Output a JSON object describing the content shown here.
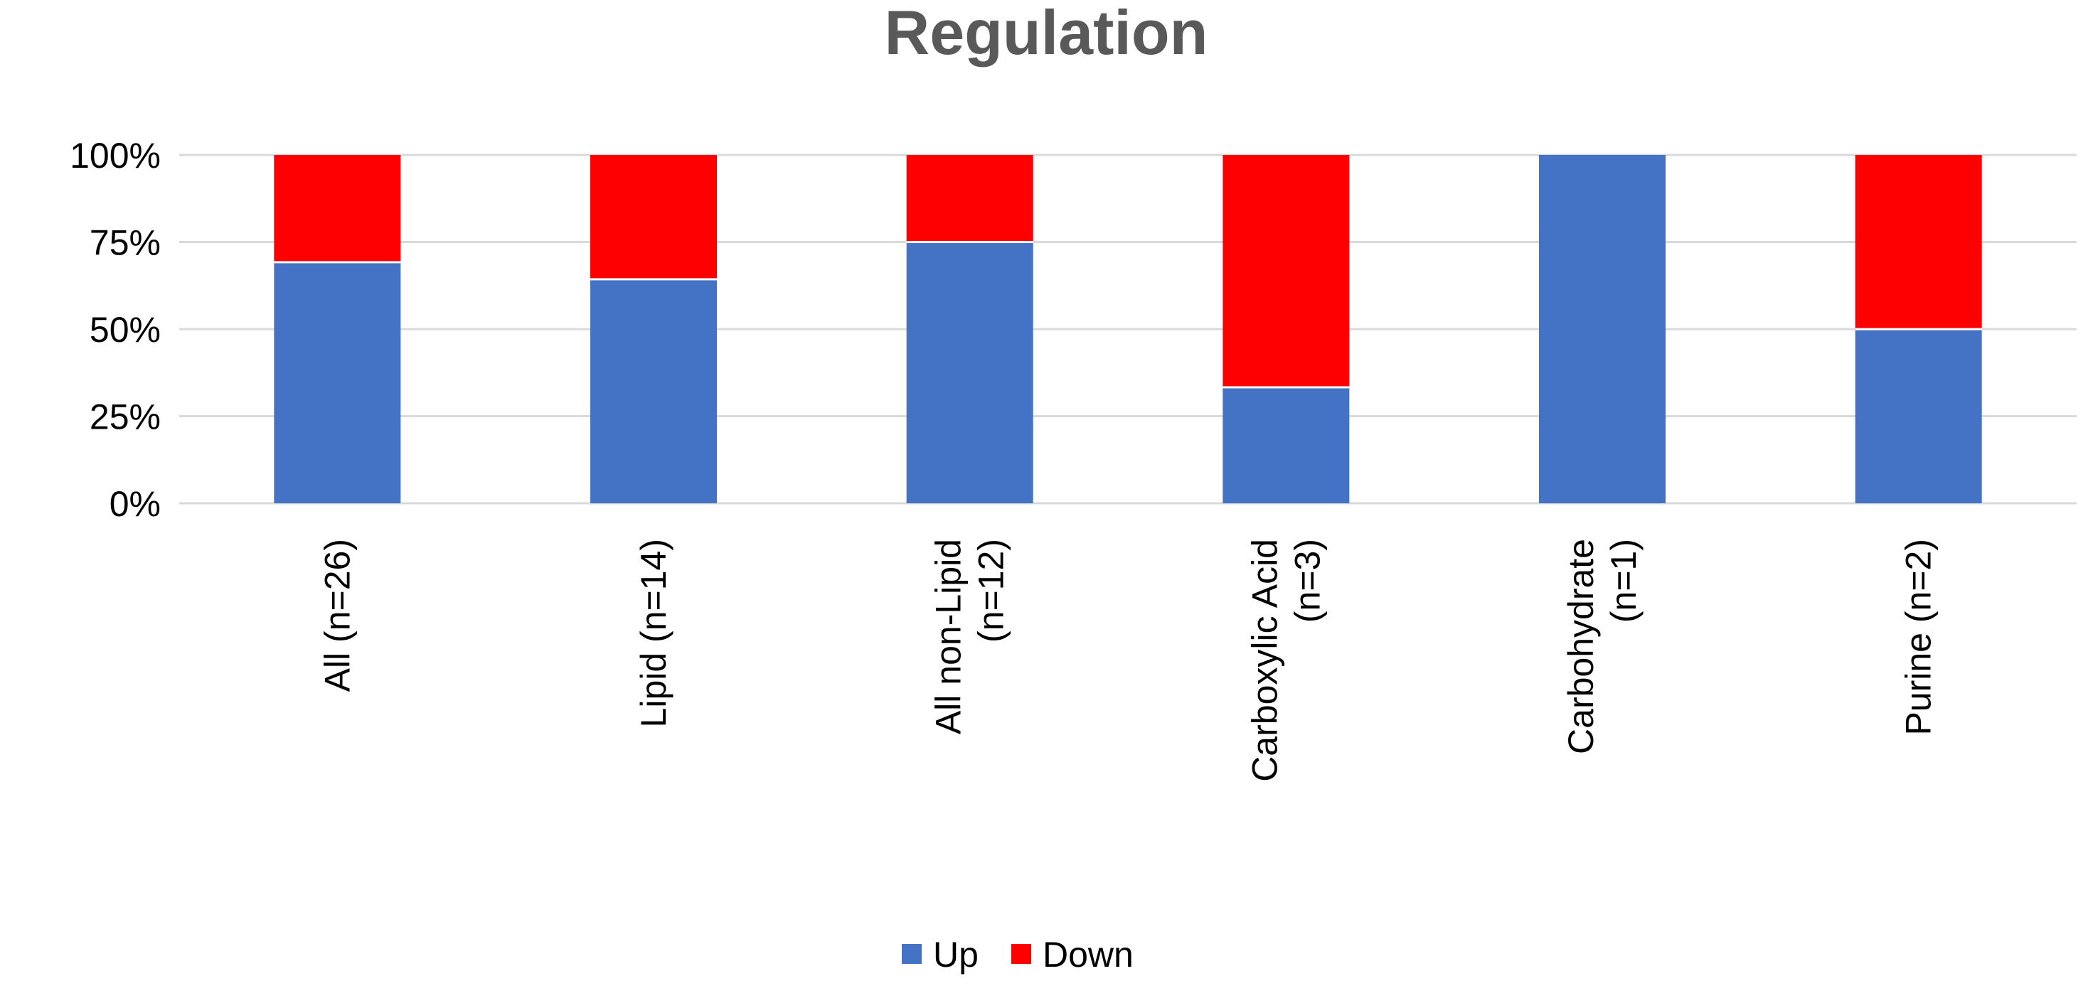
{
  "chart_data": {
    "type": "bar",
    "stacked": true,
    "percent_stacked": true,
    "title": "Regulation",
    "xlabel": "",
    "ylabel": "",
    "ylim": [
      0,
      100
    ],
    "yticks": [
      0,
      25,
      50,
      75,
      100
    ],
    "ytick_labels": [
      "0%",
      "25%",
      "50%",
      "75%",
      "100%"
    ],
    "grid": true,
    "legend": "bottom",
    "categories": [
      [
        "All (n=26)"
      ],
      [
        "Lipid (n=14)"
      ],
      [
        "All non-Lipid",
        "(n=12)"
      ],
      [
        "Carboxylic Acid",
        "(n=3)"
      ],
      [
        "Carbohydrate",
        "(n=1)"
      ],
      [
        "Purine (n=2)"
      ]
    ],
    "series": [
      {
        "name": "Up",
        "color": "#4472c4",
        "values": [
          69.2,
          64.3,
          75.0,
          33.3,
          100.0,
          50.0
        ]
      },
      {
        "name": "Down",
        "color": "#ff0000",
        "values": [
          30.8,
          35.7,
          25.0,
          66.7,
          0.0,
          50.0
        ]
      }
    ]
  }
}
